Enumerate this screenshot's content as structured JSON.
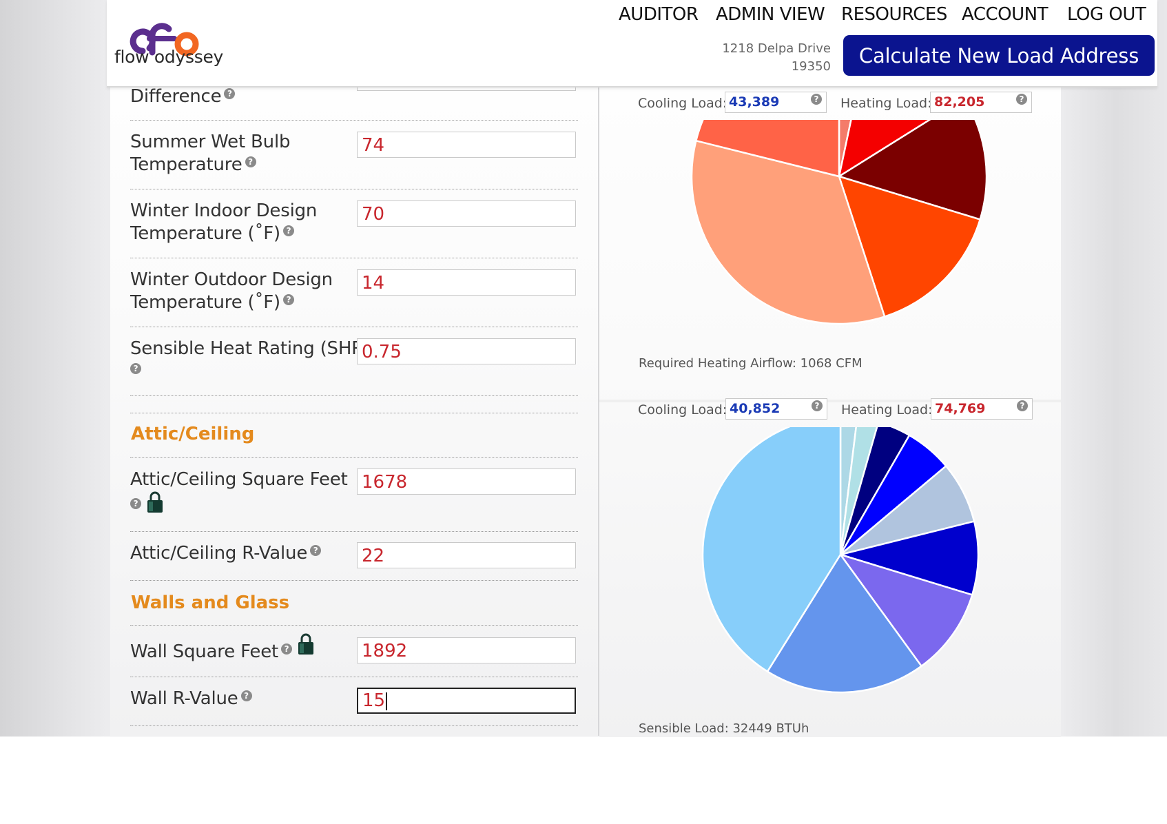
{
  "header": {
    "logo_mark": "fo",
    "logo_text": "flow odyssey",
    "nav": [
      "AUDITOR",
      "ADMIN VIEW",
      "RESOURCES",
      "ACCOUNT",
      "LOG OUT"
    ],
    "address_line1": "1218 Delpa Drive",
    "address_line2": "19350",
    "calc_button": "Calculate New Load Address"
  },
  "form": {
    "difference_label": "Difference",
    "summer_wet_bulb": {
      "label_line1": "Summer Wet Bulb",
      "label_line2": "Temperature",
      "value": "74"
    },
    "winter_indoor": {
      "label_line1": "Winter Indoor Design",
      "label_line2": "Temperature (˚F)",
      "value": "70"
    },
    "winter_outdoor": {
      "label_line1": "Winter Outdoor Design",
      "label_line2": "Temperature (˚F)",
      "value": "14"
    },
    "shr": {
      "label": "Sensible Heat Rating (SHR)",
      "value": "0.75"
    },
    "attic_section": "Attic/Ceiling",
    "attic_sqft": {
      "label": "Attic/Ceiling Square Feet",
      "value": "1678"
    },
    "attic_r": {
      "label": "Attic/Ceiling R-Value",
      "value": "22"
    },
    "walls_section": "Walls and Glass",
    "wall_sqft": {
      "label": "Wall Square Feet",
      "value": "1892"
    },
    "wall_r": {
      "label": "Wall R-Value",
      "value": "15"
    },
    "help_glyph": "?"
  },
  "heating_chart": {
    "cooling_label": "Cooling Load:",
    "cooling_value": "43,389",
    "heating_label": "Heating Load:",
    "heating_value": "82,205",
    "note": "Required Heating Airflow: 1068 CFM"
  },
  "cooling_chart": {
    "cooling_label": "Cooling Load:",
    "cooling_value": "40,852",
    "heating_label": "Heating Load:",
    "heating_value": "74,769",
    "note": "Sensible Load: 32449 BTUh"
  },
  "chart_data": [
    {
      "type": "pie",
      "slices": [
        {
          "color": "#f47b6a",
          "start_deg": 0,
          "end_deg": 12
        },
        {
          "color": "#f40000",
          "start_deg": 12,
          "end_deg": 58
        },
        {
          "color": "#7b0000",
          "start_deg": 58,
          "end_deg": 107
        },
        {
          "color": "#ff4500",
          "start_deg": 107,
          "end_deg": 162
        },
        {
          "color": "#ffa07a",
          "start_deg": 162,
          "end_deg": 284
        },
        {
          "color": "#ff6347",
          "start_deg": 284,
          "end_deg": 360
        }
      ]
    },
    {
      "type": "pie",
      "slices": [
        {
          "color": "#add8e6",
          "start_deg": 0,
          "end_deg": 7
        },
        {
          "color": "#b0e0e6",
          "start_deg": 7,
          "end_deg": 16
        },
        {
          "color": "#000080",
          "start_deg": 16,
          "end_deg": 30
        },
        {
          "color": "#0000ff",
          "start_deg": 30,
          "end_deg": 50
        },
        {
          "color": "#b0c4de",
          "start_deg": 50,
          "end_deg": 76
        },
        {
          "color": "#0000cd",
          "start_deg": 76,
          "end_deg": 107
        },
        {
          "color": "#7b68ee",
          "start_deg": 107,
          "end_deg": 144
        },
        {
          "color": "#6495ed",
          "start_deg": 144,
          "end_deg": 212
        },
        {
          "color": "#87cefa",
          "start_deg": 212,
          "end_deg": 360
        }
      ]
    }
  ]
}
